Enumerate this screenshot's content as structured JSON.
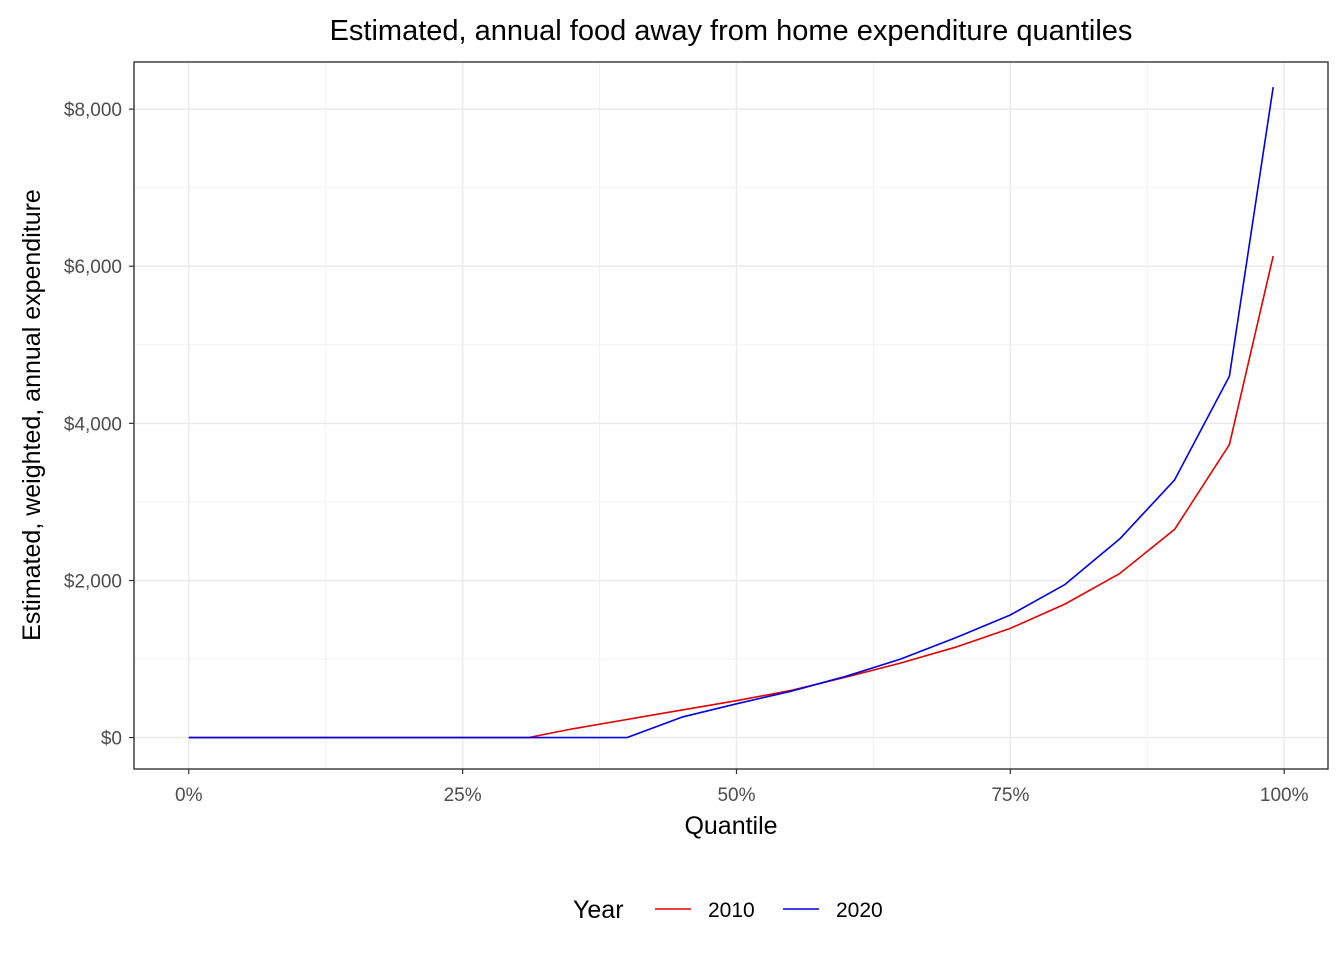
{
  "chart_data": {
    "type": "line",
    "title": "Estimated, annual food away from home expenditure quantiles",
    "xlabel": "Quantile",
    "ylabel": "Estimated, weighted, annual expenditure",
    "xlim": [
      -0.05,
      1.04
    ],
    "ylim": [
      -400,
      8600
    ],
    "x_ticks": [
      0,
      0.25,
      0.5,
      0.75,
      1.0
    ],
    "x_tick_labels": [
      "0%",
      "25%",
      "50%",
      "75%",
      "100%"
    ],
    "y_ticks": [
      0,
      2000,
      4000,
      6000,
      8000
    ],
    "y_tick_labels": [
      "$0",
      "$2,000",
      "$4,000",
      "$6,000",
      "$8,000"
    ],
    "grid": true,
    "legend": {
      "title": "Year",
      "position": "bottom"
    },
    "series": [
      {
        "name": "2010",
        "color": "#e00000",
        "x": [
          0,
          0.05,
          0.1,
          0.15,
          0.2,
          0.25,
          0.3,
          0.31,
          0.35,
          0.4,
          0.45,
          0.5,
          0.55,
          0.6,
          0.65,
          0.7,
          0.75,
          0.8,
          0.85,
          0.9,
          0.95,
          0.99
        ],
        "y": [
          0,
          0,
          0,
          0,
          0,
          0,
          0,
          0,
          110,
          230,
          350,
          470,
          600,
          770,
          950,
          1150,
          1390,
          1700,
          2090,
          2650,
          3730,
          6130
        ]
      },
      {
        "name": "2020",
        "color": "#0000e0",
        "x": [
          0,
          0.05,
          0.1,
          0.15,
          0.2,
          0.25,
          0.3,
          0.35,
          0.4,
          0.45,
          0.5,
          0.55,
          0.6,
          0.65,
          0.7,
          0.75,
          0.8,
          0.85,
          0.9,
          0.95,
          0.99
        ],
        "y": [
          0,
          0,
          0,
          0,
          0,
          0,
          0,
          0,
          0,
          260,
          430,
          590,
          780,
          1000,
          1270,
          1560,
          1950,
          2530,
          3280,
          4600,
          8280
        ]
      }
    ]
  }
}
